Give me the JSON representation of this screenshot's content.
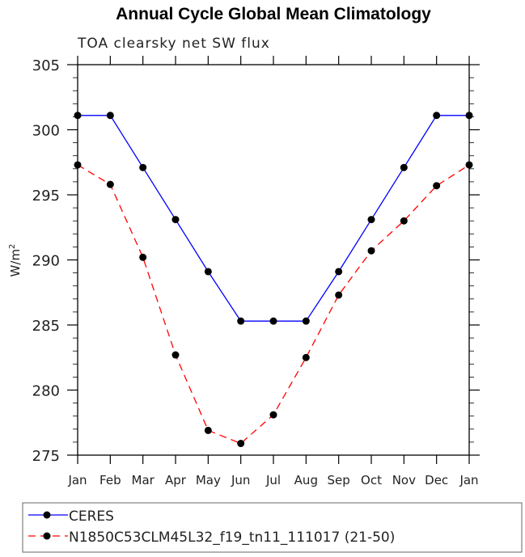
{
  "chart_data": {
    "type": "line",
    "title": "Annual Cycle Global Mean Climatology",
    "subtitle": "TOA clearsky net SW flux",
    "xlabel": "",
    "ylabel": "W/m",
    "ylabel_sup": "2",
    "categories": [
      "Jan",
      "Feb",
      "Mar",
      "Apr",
      "May",
      "Jun",
      "Jul",
      "Aug",
      "Sep",
      "Oct",
      "Nov",
      "Dec",
      "Jan"
    ],
    "ylim": [
      275,
      305
    ],
    "yticks": [
      275,
      280,
      285,
      290,
      295,
      300,
      305
    ],
    "grid": false,
    "legend_position": "bottom",
    "series": [
      {
        "name": "CERES",
        "color": "#0000ff",
        "dash": "solid",
        "values": [
          301.1,
          301.1,
          297.1,
          293.1,
          289.1,
          285.3,
          285.3,
          285.3,
          289.1,
          293.1,
          297.1,
          301.1,
          301.1
        ]
      },
      {
        "name": "N1850C53CLM45L32_f19_tn11_111017 (21-50)",
        "color": "#ff0000",
        "dash": "dashed",
        "values": [
          297.3,
          295.8,
          290.2,
          282.7,
          276.9,
          275.9,
          278.1,
          282.5,
          287.3,
          290.7,
          293.0,
          295.7,
          297.3
        ]
      }
    ]
  }
}
